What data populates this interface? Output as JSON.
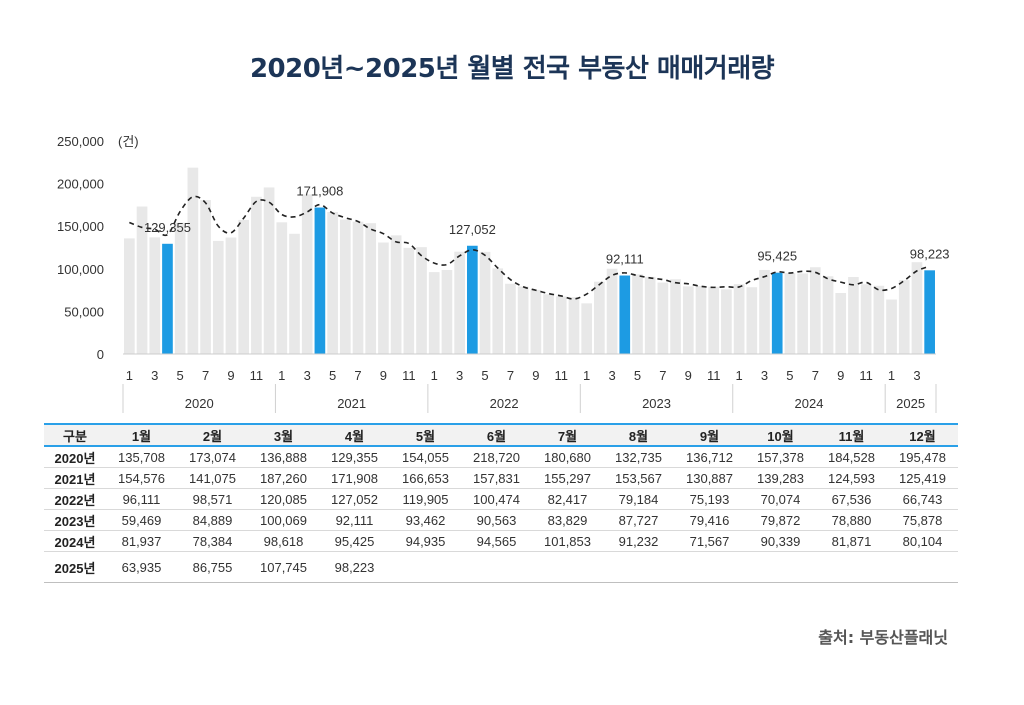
{
  "title": "2020년~2025년 월별 전국 부동산 매매거래량",
  "source": "출처: 부동산플래닛",
  "colors": {
    "bar": "#e8e8e8",
    "highlight": "#1d9be3",
    "line": "#222222",
    "table_border": "#2aa0e8"
  },
  "chart_data": {
    "type": "bar",
    "unit_label": "(건)",
    "ylim": [
      0,
      250000
    ],
    "y_ticks": [
      "0",
      "50,000",
      "100,000",
      "150,000",
      "200,000",
      "250,000"
    ],
    "month_tick_labels": [
      "1",
      "3",
      "5",
      "7",
      "9",
      "11"
    ],
    "years": [
      "2020",
      "2021",
      "2022",
      "2023",
      "2024",
      "2025"
    ],
    "values": [
      135708,
      173074,
      136888,
      129355,
      154055,
      218720,
      180680,
      132735,
      136712,
      157378,
      184528,
      195478,
      154576,
      141075,
      187260,
      171908,
      166653,
      157831,
      155297,
      153567,
      130887,
      139283,
      124593,
      125419,
      96111,
      98571,
      120085,
      127052,
      119905,
      100474,
      82417,
      79184,
      75193,
      70074,
      67536,
      66743,
      59469,
      84889,
      100069,
      92111,
      93462,
      90563,
      83829,
      87727,
      79416,
      79872,
      78880,
      75878,
      81937,
      78384,
      98618,
      95425,
      94935,
      94565,
      101853,
      91232,
      71567,
      90339,
      81871,
      80104,
      63935,
      86755,
      107745,
      98223
    ],
    "highlight_indices": [
      3,
      15,
      27,
      39,
      51,
      63
    ],
    "highlight_labels": [
      "129,355",
      "171,908",
      "127,052",
      "92,111",
      "95,425",
      "98,223"
    ],
    "trend_line": "dashed"
  },
  "table": {
    "headers": [
      "구분",
      "1월",
      "2월",
      "3월",
      "4월",
      "5월",
      "6월",
      "7월",
      "8월",
      "9월",
      "10월",
      "11월",
      "12월"
    ],
    "rows": [
      [
        "2020년",
        "135,708",
        "173,074",
        "136,888",
        "129,355",
        "154,055",
        "218,720",
        "180,680",
        "132,735",
        "136,712",
        "157,378",
        "184,528",
        "195,478"
      ],
      [
        "2021년",
        "154,576",
        "141,075",
        "187,260",
        "171,908",
        "166,653",
        "157,831",
        "155,297",
        "153,567",
        "130,887",
        "139,283",
        "124,593",
        "125,419"
      ],
      [
        "2022년",
        "96,111",
        "98,571",
        "120,085",
        "127,052",
        "119,905",
        "100,474",
        "82,417",
        "79,184",
        "75,193",
        "70,074",
        "67,536",
        "66,743"
      ],
      [
        "2023년",
        "59,469",
        "84,889",
        "100,069",
        "92,111",
        "93,462",
        "90,563",
        "83,829",
        "87,727",
        "79,416",
        "79,872",
        "78,880",
        "75,878"
      ],
      [
        "2024년",
        "81,937",
        "78,384",
        "98,618",
        "95,425",
        "94,935",
        "94,565",
        "101,853",
        "91,232",
        "71,567",
        "90,339",
        "81,871",
        "80,104"
      ],
      [
        "2025년",
        "63,935",
        "86,755",
        "107,745",
        "98,223",
        "",
        "",
        "",
        "",
        "",
        "",
        "",
        ""
      ]
    ]
  }
}
